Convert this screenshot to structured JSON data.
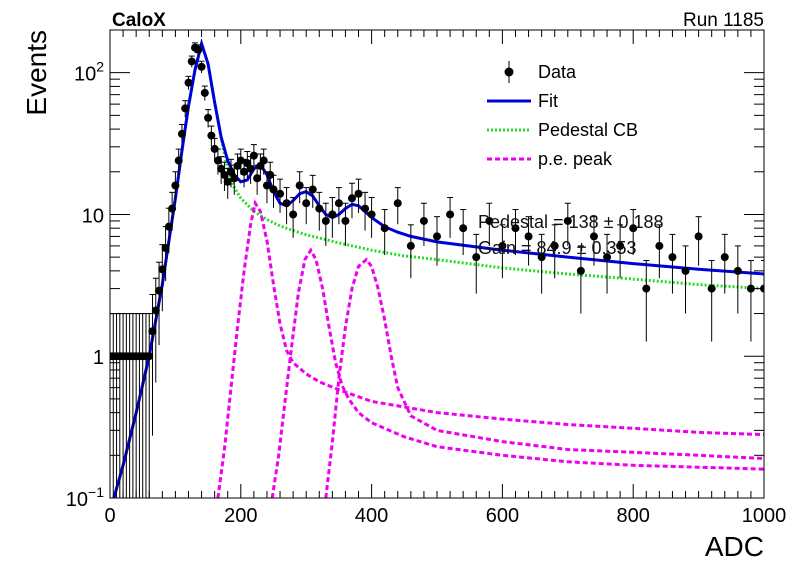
{
  "header": {
    "left": "CaloX",
    "right": "Run 1185"
  },
  "fit_params": [
    "Pedestal = 138 ± 0.188",
    "Gain = 84.9 ± 0.353"
  ],
  "chart_data": {
    "type": "scatter",
    "xlabel": "ADC",
    "ylabel": "Events",
    "xlim": [
      0,
      1000
    ],
    "ylim": [
      0.1,
      200
    ],
    "yscale": "log",
    "grid": false,
    "legend_position": "top-right",
    "x_ticks": [
      "0",
      "200",
      "400",
      "600",
      "800",
      "1000"
    ],
    "y_ticks": [
      {
        "value": 0.1,
        "base": "10",
        "exp": "−1"
      },
      {
        "value": 1,
        "text": "1"
      },
      {
        "value": 10,
        "text": "10"
      },
      {
        "value": 100,
        "base": "10",
        "exp": "2"
      }
    ],
    "legend": [
      {
        "label": "Data",
        "style": "marker",
        "color": "#000000"
      },
      {
        "label": "Fit",
        "style": "solid",
        "color": "#0000dd"
      },
      {
        "label": "Pedestal CB",
        "style": "dotted",
        "color": "#22dd22"
      },
      {
        "label": "p.e. peak",
        "style": "dashed",
        "color": "#ee00ee"
      }
    ],
    "series": [
      {
        "name": "Data",
        "kind": "points_with_errors",
        "x": [
          0,
          5,
          10,
          15,
          20,
          25,
          30,
          35,
          40,
          45,
          50,
          55,
          60,
          65,
          70,
          75,
          80,
          85,
          90,
          95,
          100,
          105,
          110,
          115,
          120,
          125,
          130,
          135,
          140,
          145,
          150,
          155,
          160,
          165,
          170,
          175,
          180,
          185,
          190,
          195,
          200,
          205,
          210,
          215,
          220,
          225,
          230,
          235,
          240,
          245,
          250,
          260,
          270,
          280,
          290,
          300,
          310,
          320,
          330,
          340,
          350,
          360,
          370,
          380,
          390,
          400,
          420,
          440,
          460,
          480,
          500,
          520,
          540,
          560,
          580,
          600,
          620,
          640,
          660,
          680,
          700,
          720,
          740,
          760,
          780,
          800,
          820,
          840,
          860,
          880,
          900,
          920,
          940,
          960,
          980,
          1000
        ],
        "y": [
          1,
          1,
          1,
          1,
          1,
          1,
          1,
          1,
          1,
          1,
          1,
          1,
          1.0,
          1.5,
          2.1,
          2.9,
          4.1,
          5.8,
          8.2,
          11,
          16,
          24,
          37,
          56,
          85,
          120,
          150,
          145,
          110,
          72,
          48,
          36,
          29,
          24,
          21,
          19,
          17,
          20,
          18,
          22,
          24,
          20,
          23,
          21,
          26,
          18,
          22,
          24,
          16,
          19,
          15,
          14,
          12,
          10,
          16,
          12,
          15,
          11,
          9,
          10,
          12,
          9,
          13,
          14,
          11,
          10,
          8,
          12,
          6,
          9,
          7,
          10,
          8,
          5,
          9,
          6,
          8,
          7,
          5,
          6,
          9,
          4,
          7,
          5,
          6,
          8,
          3,
          6,
          5,
          4,
          7,
          3,
          5,
          4,
          3,
          3
        ]
      },
      {
        "name": "Fit",
        "kind": "line",
        "x": [
          0,
          20,
          40,
          60,
          80,
          100,
          110,
          120,
          130,
          140,
          150,
          160,
          170,
          180,
          190,
          200,
          210,
          220,
          230,
          240,
          250,
          260,
          270,
          280,
          290,
          300,
          310,
          320,
          330,
          340,
          350,
          360,
          370,
          380,
          390,
          400,
          420,
          440,
          460,
          500,
          600,
          700,
          800,
          900,
          1000
        ],
        "y": [
          0.08,
          0.17,
          0.4,
          1.0,
          3.2,
          13,
          28,
          58,
          105,
          160,
          115,
          62,
          35,
          24,
          19,
          17,
          17.5,
          21,
          22.5,
          19,
          14.5,
          12,
          11.5,
          12.5,
          14,
          14.5,
          13.5,
          11.5,
          10,
          9.5,
          10,
          11,
          11.8,
          11.5,
          10.5,
          9.5,
          8.2,
          7.5,
          7.0,
          6.4,
          5.6,
          5.0,
          4.5,
          4.1,
          3.8
        ]
      },
      {
        "name": "Pedestal CB",
        "kind": "line",
        "x": [
          0,
          20,
          40,
          60,
          80,
          100,
          110,
          120,
          130,
          140,
          150,
          160,
          170,
          180,
          190,
          200,
          220,
          240,
          260,
          280,
          300,
          350,
          400,
          450,
          500,
          600,
          700,
          800,
          900,
          1000
        ],
        "y": [
          0.08,
          0.17,
          0.4,
          1.0,
          3.2,
          13,
          28,
          58,
          105,
          160,
          115,
          62,
          34,
          21,
          15.5,
          13,
          10.5,
          9.2,
          8.3,
          7.7,
          7.2,
          6.3,
          5.6,
          5.1,
          4.8,
          4.2,
          3.8,
          3.5,
          3.2,
          3.0
        ]
      },
      {
        "name": "p.e. peak 1",
        "kind": "line",
        "x": [
          165,
          175,
          185,
          195,
          205,
          215,
          222,
          230,
          240,
          250,
          260,
          270,
          280,
          300,
          320,
          350,
          400,
          500,
          600,
          700,
          800,
          900,
          1000
        ],
        "y": [
          0.1,
          0.22,
          0.6,
          1.6,
          4.0,
          8.5,
          12,
          10.5,
          6.5,
          3.2,
          1.7,
          1.1,
          0.9,
          0.75,
          0.66,
          0.58,
          0.48,
          0.4,
          0.36,
          0.33,
          0.31,
          0.29,
          0.28
        ]
      },
      {
        "name": "p.e. peak 2",
        "kind": "line",
        "x": [
          248,
          258,
          268,
          278,
          288,
          298,
          307,
          315,
          325,
          335,
          345,
          355,
          365,
          380,
          400,
          450,
          500,
          600,
          700,
          800,
          900,
          1000
        ],
        "y": [
          0.1,
          0.2,
          0.5,
          1.2,
          2.8,
          4.8,
          5.6,
          4.8,
          3.0,
          1.6,
          0.9,
          0.62,
          0.5,
          0.4,
          0.34,
          0.27,
          0.23,
          0.2,
          0.18,
          0.17,
          0.165,
          0.16
        ]
      },
      {
        "name": "p.e. peak 3",
        "kind": "line",
        "x": [
          330,
          340,
          350,
          360,
          370,
          380,
          392,
          400,
          410,
          420,
          430,
          440,
          460,
          500,
          600,
          700,
          800,
          900,
          1000
        ],
        "y": [
          0.1,
          0.25,
          0.7,
          1.6,
          3.0,
          4.3,
          4.8,
          4.3,
          3.0,
          1.8,
          1.0,
          0.6,
          0.38,
          0.3,
          0.25,
          0.22,
          0.21,
          0.2,
          0.19
        ]
      }
    ]
  }
}
